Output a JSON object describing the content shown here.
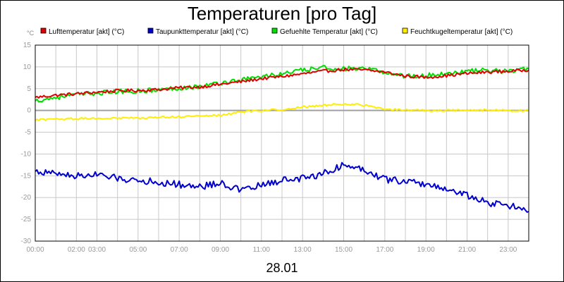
{
  "chart_data": {
    "type": "line",
    "title": "Temperaturen [pro Tag]",
    "ylabel": "°C",
    "xlabel": "28.01",
    "ylim": [
      -30,
      15
    ],
    "yticks": [
      15,
      10,
      5,
      0,
      -5,
      -10,
      -15,
      -20,
      -25,
      -30
    ],
    "xlim": [
      0,
      24
    ],
    "xticks": [
      {
        "value": 0,
        "label": "00:00"
      },
      {
        "value": 2,
        "label": "02:00"
      },
      {
        "value": 3,
        "label": "03:00"
      },
      {
        "value": 5,
        "label": "05:00"
      },
      {
        "value": 7,
        "label": "07:00"
      },
      {
        "value": 9,
        "label": "09:00"
      },
      {
        "value": 11,
        "label": "11:00"
      },
      {
        "value": 13,
        "label": "13:00"
      },
      {
        "value": 15,
        "label": "15:00"
      },
      {
        "value": 17,
        "label": "17:00"
      },
      {
        "value": 19,
        "label": "19:00"
      },
      {
        "value": 21,
        "label": "21:00"
      },
      {
        "value": 23,
        "label": "23:00"
      }
    ],
    "x": [
      0,
      1,
      2,
      3,
      4,
      5,
      6,
      7,
      8,
      9,
      10,
      11,
      12,
      13,
      14,
      15,
      16,
      17,
      18,
      19,
      20,
      21,
      22,
      23,
      24
    ],
    "series": [
      {
        "name": "Lufttemperatur [akt] (°C)",
        "color": "#e00000",
        "values": [
          3.0,
          3.5,
          3.8,
          4.2,
          4.5,
          4.6,
          4.8,
          5.2,
          5.4,
          6.0,
          6.6,
          7.3,
          7.8,
          8.4,
          9.0,
          9.4,
          9.3,
          8.8,
          7.9,
          7.6,
          8.0,
          8.5,
          8.8,
          9.0,
          9.3
        ]
      },
      {
        "name": "Taupunkttemperatur [akt] (°C)",
        "color": "#0000cc",
        "values": [
          -14.0,
          -14.5,
          -15.0,
          -14.8,
          -15.6,
          -16.0,
          -16.5,
          -17.0,
          -17.5,
          -16.6,
          -18.4,
          -17.2,
          -16.0,
          -15.6,
          -14.5,
          -12.5,
          -13.5,
          -15.8,
          -16.2,
          -17.0,
          -18.0,
          -19.5,
          -21.2,
          -21.8,
          -23.2
        ]
      },
      {
        "name": "Gefuehlte Temperatur [akt] (°C)",
        "color": "#00dd00",
        "values": [
          2.2,
          3.0,
          3.6,
          4.0,
          4.3,
          4.5,
          4.7,
          5.2,
          5.5,
          6.3,
          7.0,
          7.8,
          8.4,
          9.2,
          9.8,
          9.6,
          9.5,
          8.8,
          7.9,
          8.0,
          8.5,
          9.0,
          9.2,
          9.0,
          9.6
        ]
      },
      {
        "name": "Feuchtkugeltemperatur [akt] (°C)",
        "color": "#ffee00",
        "values": [
          -2.2,
          -2.0,
          -1.9,
          -1.8,
          -1.8,
          -1.7,
          -1.6,
          -1.5,
          -1.3,
          -1.1,
          -0.4,
          0.0,
          0.2,
          0.8,
          1.2,
          1.5,
          1.2,
          0.3,
          0.1,
          0.0,
          0.0,
          0.0,
          0.1,
          0.0,
          0.0
        ]
      }
    ]
  }
}
